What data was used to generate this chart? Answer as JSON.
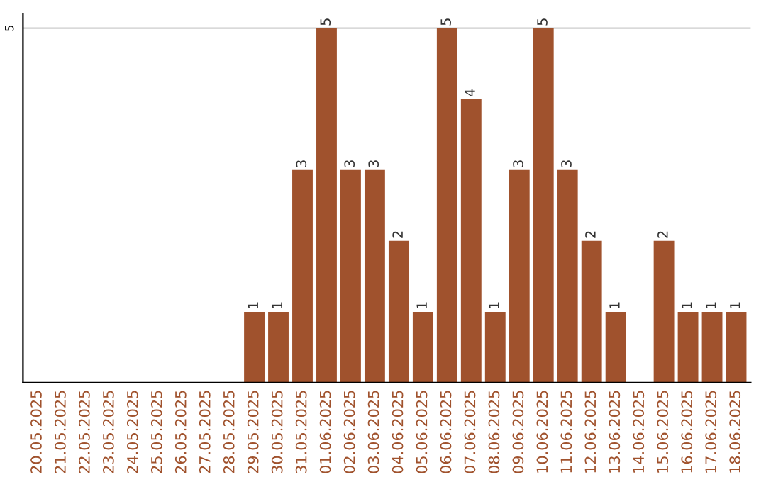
{
  "chart_data": {
    "type": "bar",
    "categories": [
      "20.05.2025",
      "21.05.2025",
      "22.05.2025",
      "23.05.2025",
      "24.05.2025",
      "25.05.2025",
      "26.05.2025",
      "27.05.2025",
      "28.05.2025",
      "29.05.2025",
      "30.05.2025",
      "31.05.2025",
      "01.06.2025",
      "02.06.2025",
      "03.06.2025",
      "04.06.2025",
      "05.06.2025",
      "06.06.2025",
      "07.06.2025",
      "08.06.2025",
      "09.06.2025",
      "10.06.2025",
      "11.06.2025",
      "12.06.2025",
      "13.06.2025",
      "14.06.2025",
      "15.06.2025",
      "16.06.2025",
      "17.06.2025",
      "18.06.2025"
    ],
    "values": [
      0,
      0,
      0,
      0,
      0,
      0,
      0,
      0,
      0,
      1,
      1,
      3,
      5,
      3,
      3,
      2,
      1,
      5,
      4,
      1,
      3,
      5,
      3,
      2,
      1,
      0,
      2,
      1,
      1,
      1
    ],
    "value_labels": [
      null,
      null,
      null,
      null,
      null,
      null,
      null,
      null,
      null,
      "1",
      "1",
      "3",
      "5",
      "3",
      "3",
      "2",
      "1",
      "5",
      "4",
      "1",
      "3",
      "5",
      "3",
      "2",
      "1",
      null,
      "2",
      "1",
      "1",
      "1"
    ],
    "color": "#a0522d",
    "ylim": [
      0,
      5.2
    ],
    "yticks": [
      5
    ],
    "grid": "y",
    "legend": false
  }
}
